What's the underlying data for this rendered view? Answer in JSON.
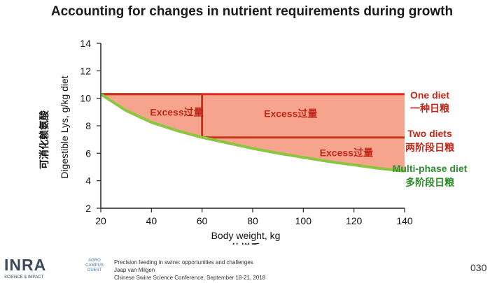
{
  "header": {
    "title": "Accounting for changes in nutrient requirements during growth"
  },
  "chart_data": {
    "type": "line",
    "xlabel": "Body weight, kg",
    "xlabel_cn": "体增重",
    "ylabel": "Digestible Lys, g/kg diet",
    "ylabel_cn": "可消化赖氨酸",
    "xlim": [
      20,
      140
    ],
    "ylim": [
      2,
      14
    ],
    "x_ticks": [
      "20",
      "40",
      "60",
      "80",
      "100",
      "120",
      "140"
    ],
    "y_ticks": [
      "2",
      "4",
      "6",
      "8",
      "10",
      "12",
      "14"
    ],
    "grid": false,
    "requirement_curve": {
      "x": [
        20,
        30,
        40,
        50,
        60,
        70,
        80,
        90,
        100,
        110,
        120,
        130,
        140
      ],
      "y": [
        10.3,
        9.1,
        8.25,
        7.65,
        7.15,
        6.75,
        6.35,
        6.0,
        5.7,
        5.4,
        5.15,
        4.9,
        4.7
      ]
    },
    "series": [
      {
        "name": "One diet",
        "name_cn": "一种日粮",
        "color": "#e8251f",
        "x": [
          20,
          140
        ],
        "y": [
          10.3,
          10.3
        ]
      },
      {
        "name": "Two diets",
        "name_cn": "两阶段日粮",
        "color": "#c9351c",
        "x": [
          20,
          60,
          60,
          140
        ],
        "y": [
          10.3,
          10.3,
          7.15,
          7.15
        ]
      },
      {
        "name": "Multi-phase diet",
        "name_cn": "多阶段日粮",
        "color": "#8cc63f",
        "x": [
          20,
          30,
          40,
          50,
          60,
          70,
          80,
          90,
          100,
          110,
          120,
          130,
          140
        ],
        "y": [
          10.3,
          9.1,
          8.25,
          7.65,
          7.15,
          6.75,
          6.35,
          6.0,
          5.7,
          5.4,
          5.15,
          4.9,
          4.7
        ]
      }
    ],
    "annotations": [
      {
        "text": "Excess过量",
        "x": 50,
        "y": 9.0
      },
      {
        "text": "Excess过量",
        "x": 95,
        "y": 8.9
      },
      {
        "text": "Excess过量",
        "x": 117,
        "y": 6.05
      }
    ],
    "colors": {
      "excess_fill": "#f6a48e",
      "axis": "#222222"
    }
  },
  "footer": {
    "logo_text": "INRA",
    "logo_sub": "SCIENCE & IMPACT",
    "logo2_text": "AGRO CAMPUS OUEST",
    "citation": [
      "Precision feeding in swine: opportunities and challenges",
      "Jaap van Milgen",
      "Chinese Swine Science Conference, September 18-21, 2018"
    ],
    "page_number": "030"
  }
}
